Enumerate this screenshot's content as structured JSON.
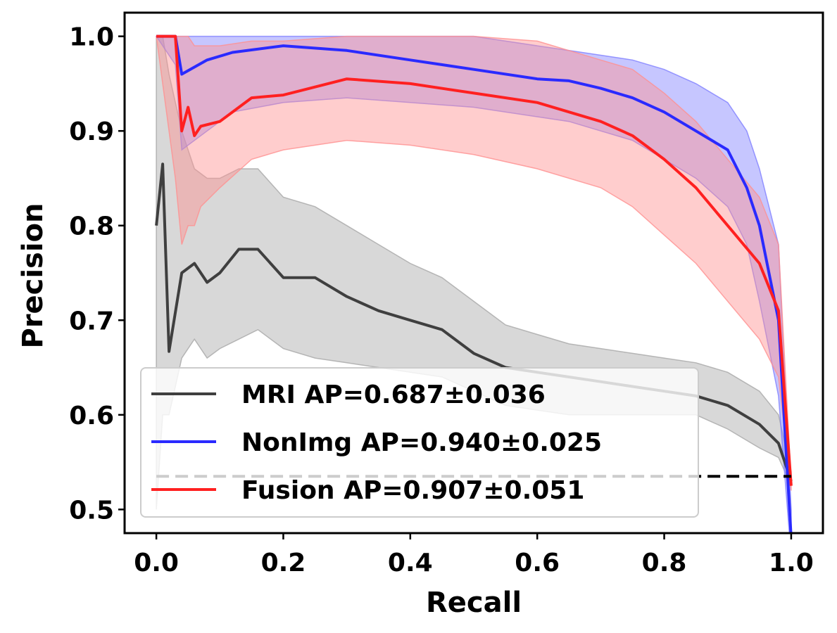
{
  "chart_data": {
    "type": "line",
    "xlabel": "Recall",
    "ylabel": "Precision",
    "xlim": [
      -0.05,
      1.05
    ],
    "ylim": [
      0.475,
      1.025
    ],
    "xticks": [
      "0.0",
      "0.2",
      "0.4",
      "0.6",
      "0.8",
      "1.0"
    ],
    "yticks": [
      "0.5",
      "0.6",
      "0.7",
      "0.8",
      "0.9",
      "1.0"
    ],
    "grid": false,
    "legend_position": "lower-left",
    "baseline": {
      "y": 0.535,
      "x": [
        0.0,
        1.0
      ],
      "style": "dashed",
      "color": "#000000"
    },
    "series": [
      {
        "name": "MRI AP=0.687±0.036",
        "color": "#3f3f3f",
        "band_color": "#a8a8a8",
        "x": [
          0.0,
          0.01,
          0.02,
          0.04,
          0.06,
          0.08,
          0.1,
          0.13,
          0.16,
          0.2,
          0.25,
          0.3,
          0.35,
          0.4,
          0.45,
          0.5,
          0.55,
          0.6,
          0.65,
          0.7,
          0.75,
          0.8,
          0.85,
          0.9,
          0.95,
          0.98,
          1.0
        ],
        "y": [
          0.8,
          0.865,
          0.667,
          0.75,
          0.76,
          0.74,
          0.75,
          0.775,
          0.775,
          0.745,
          0.745,
          0.725,
          0.71,
          0.7,
          0.69,
          0.665,
          0.65,
          0.645,
          0.64,
          0.635,
          0.63,
          0.625,
          0.62,
          0.61,
          0.59,
          0.57,
          0.53
        ],
        "lower": [
          0.5,
          0.6,
          0.6,
          0.66,
          0.68,
          0.66,
          0.67,
          0.68,
          0.69,
          0.67,
          0.66,
          0.655,
          0.65,
          0.645,
          0.64,
          0.625,
          0.61,
          0.605,
          0.6,
          0.6,
          0.6,
          0.6,
          0.6,
          0.585,
          0.565,
          0.555,
          0.525
        ],
        "upper": [
          1.0,
          1.0,
          0.96,
          0.9,
          0.86,
          0.85,
          0.85,
          0.86,
          0.86,
          0.83,
          0.82,
          0.8,
          0.78,
          0.76,
          0.745,
          0.72,
          0.695,
          0.685,
          0.675,
          0.67,
          0.665,
          0.66,
          0.655,
          0.645,
          0.625,
          0.6,
          0.54
        ]
      },
      {
        "name": "NonImg AP=0.940±0.025",
        "color": "#2a2aff",
        "band_color": "#8080ff",
        "x": [
          0.0,
          0.03,
          0.04,
          0.08,
          0.12,
          0.2,
          0.3,
          0.4,
          0.5,
          0.6,
          0.65,
          0.7,
          0.75,
          0.8,
          0.85,
          0.9,
          0.93,
          0.95,
          0.98,
          1.0
        ],
        "y": [
          1.0,
          1.0,
          0.96,
          0.975,
          0.983,
          0.99,
          0.985,
          0.975,
          0.965,
          0.955,
          0.953,
          0.945,
          0.935,
          0.92,
          0.9,
          0.88,
          0.84,
          0.8,
          0.7,
          0.47
        ],
        "lower": [
          1.0,
          0.97,
          0.88,
          0.9,
          0.92,
          0.93,
          0.935,
          0.93,
          0.925,
          0.915,
          0.91,
          0.9,
          0.89,
          0.87,
          0.85,
          0.82,
          0.78,
          0.72,
          0.62,
          0.45
        ],
        "upper": [
          1.0,
          1.0,
          1.0,
          1.0,
          1.0,
          1.0,
          1.0,
          1.0,
          1.0,
          0.99,
          0.985,
          0.98,
          0.975,
          0.965,
          0.95,
          0.93,
          0.9,
          0.86,
          0.78,
          0.5
        ]
      },
      {
        "name": "Fusion AP=0.907±0.051",
        "color": "#ff2020",
        "band_color": "#ff9090",
        "x": [
          0.0,
          0.03,
          0.04,
          0.05,
          0.06,
          0.07,
          0.1,
          0.15,
          0.2,
          0.3,
          0.4,
          0.5,
          0.6,
          0.7,
          0.75,
          0.8,
          0.85,
          0.9,
          0.95,
          0.98,
          1.0
        ],
        "y": [
          1.0,
          1.0,
          0.9,
          0.925,
          0.895,
          0.905,
          0.91,
          0.935,
          0.938,
          0.955,
          0.95,
          0.94,
          0.93,
          0.91,
          0.895,
          0.87,
          0.84,
          0.8,
          0.76,
          0.71,
          0.525
        ],
        "lower": [
          1.0,
          0.85,
          0.78,
          0.8,
          0.8,
          0.82,
          0.84,
          0.87,
          0.88,
          0.89,
          0.885,
          0.875,
          0.86,
          0.84,
          0.82,
          0.79,
          0.76,
          0.72,
          0.68,
          0.64,
          0.52
        ],
        "upper": [
          1.0,
          1.0,
          1.0,
          1.0,
          0.99,
          0.99,
          0.99,
          0.995,
          0.995,
          1.0,
          1.0,
          1.0,
          0.995,
          0.975,
          0.965,
          0.94,
          0.91,
          0.87,
          0.83,
          0.78,
          0.53
        ]
      }
    ]
  }
}
